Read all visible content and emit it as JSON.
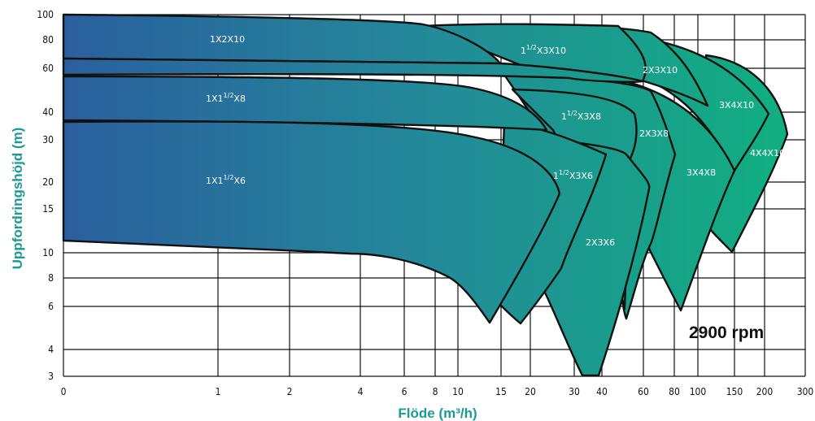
{
  "chart_data": {
    "type": "area",
    "title": "",
    "xlabel": "Flöde (m³/h)",
    "ylabel": "Uppfordringshöjd (m)",
    "x_scale": "log",
    "y_scale": "log",
    "xlim": [
      0,
      300
    ],
    "ylim": [
      3,
      100
    ],
    "grid": true,
    "x_ticks": [
      "0",
      "1",
      "2",
      "4",
      "6",
      "8",
      "10",
      "15",
      "20",
      "30",
      "40",
      "60",
      "80",
      "100",
      "150",
      "200",
      "300"
    ],
    "y_ticks": [
      "3",
      "4",
      "6",
      "8",
      "10",
      "15",
      "20",
      "30",
      "40",
      "60",
      "80",
      "100"
    ],
    "annotation": "2900 rpm",
    "zones": [
      {
        "name": "1X1½X6",
        "label_pre": "1X1",
        "label_sup": "1/2",
        "label_post": "X6",
        "flow_max": 25,
        "head_min": 5.2,
        "head_max": 36
      },
      {
        "name": "1½X3X6",
        "label_pre": "1",
        "label_sup": "1/2",
        "label_post": "X3X6",
        "flow_max": 34,
        "head_min": 5.0,
        "head_max": 33
      },
      {
        "name": "2X3X6",
        "label_pre": "2X3X6",
        "label_sup": "",
        "label_post": "",
        "flow_max": 52,
        "head_min": 3.0,
        "head_max": 31
      },
      {
        "name": "1X1½X8",
        "label_pre": "1X1",
        "label_sup": "1/2",
        "label_post": "X8",
        "flow_max": 28,
        "head_min": 38,
        "head_max": 56
      },
      {
        "name": "1½X3X8",
        "label_pre": "1",
        "label_sup": "1/2",
        "label_post": "X3X8",
        "flow_max": 50,
        "head_min": 5.2,
        "head_max": 50
      },
      {
        "name": "2X3X8",
        "label_pre": "2X3X8",
        "label_sup": "",
        "label_post": "",
        "flow_max": 80,
        "head_min": 5.5,
        "head_max": 48
      },
      {
        "name": "3X4X8",
        "label_pre": "3X4X8",
        "label_sup": "",
        "label_post": "",
        "flow_max": 147,
        "head_min": 5.5,
        "head_max": 45
      },
      {
        "name": "1X2X10",
        "label_pre": "1X2X10",
        "label_sup": "",
        "label_post": "",
        "flow_max": 15,
        "head_min": 65,
        "head_max": 96
      },
      {
        "name": "1½X3X10",
        "label_pre": "1",
        "label_sup": "1/2",
        "label_post": "X3X10",
        "flow_max": 60,
        "head_min": 58,
        "head_max": 91
      },
      {
        "name": "2X3X10",
        "label_pre": "2X3X10",
        "label_sup": "",
        "label_post": "",
        "flow_max": 100,
        "head_min": 45,
        "head_max": 90
      },
      {
        "name": "3X4X10",
        "label_pre": "3X4X10",
        "label_sup": "",
        "label_post": "",
        "flow_max": 160,
        "head_min": 22,
        "head_max": 80
      },
      {
        "name": "4X4X10",
        "label_pre": "4X4X10",
        "label_sup": "",
        "label_post": "",
        "flow_max": 240,
        "head_min": 9.5,
        "head_max": 68
      }
    ]
  }
}
